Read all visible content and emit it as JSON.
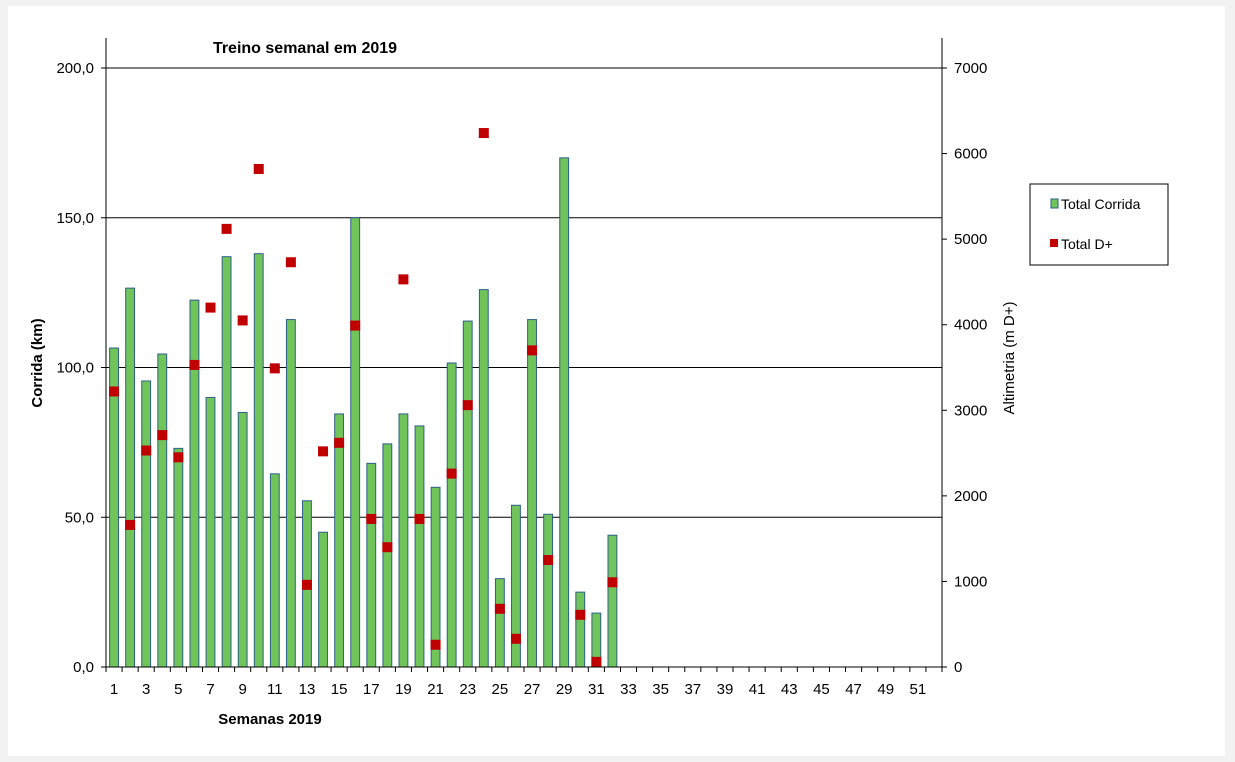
{
  "chart_data": {
    "type": "bar",
    "title": "Treino semanal em 2019",
    "xlabel": "Semanas 2019",
    "ylabel": "Corrida (km)",
    "y2label": "Altimetria (m D+)",
    "ylim": [
      0,
      200
    ],
    "y2lim": [
      0,
      7000
    ],
    "yticks": [
      "0,0",
      "50,0",
      "100,0",
      "150,0",
      "200,0"
    ],
    "y2ticks": [
      "0",
      "1000",
      "2000",
      "3000",
      "4000",
      "5000",
      "6000",
      "7000"
    ],
    "xticks": [
      "1",
      "3",
      "5",
      "7",
      "9",
      "11",
      "13",
      "15",
      "17",
      "19",
      "21",
      "23",
      "25",
      "27",
      "29",
      "31",
      "33",
      "35",
      "37",
      "39",
      "41",
      "43",
      "45",
      "47",
      "49",
      "51"
    ],
    "weeks": [
      1,
      2,
      3,
      4,
      5,
      6,
      7,
      8,
      9,
      10,
      11,
      12,
      13,
      14,
      15,
      16,
      17,
      18,
      19,
      20,
      21,
      22,
      23,
      24,
      25,
      26,
      27,
      28,
      29,
      30,
      31,
      32,
      33,
      34,
      35,
      36,
      37,
      38,
      39,
      40,
      41,
      42,
      43,
      44,
      45,
      46,
      47,
      48,
      49,
      50,
      51,
      52
    ],
    "grid": true,
    "legend_position": "right",
    "series": [
      {
        "name": "Total Corrida",
        "kind": "bar",
        "axis": "left",
        "color": "#70c45a",
        "edge_color": "#2e5f8a",
        "values": [
          106.5,
          126.5,
          95.5,
          104.5,
          73,
          122.5,
          90,
          137,
          85,
          138,
          64.5,
          116,
          55.5,
          45,
          84.5,
          150,
          68,
          74.5,
          84.5,
          80.5,
          60,
          101.5,
          115.5,
          126,
          29.5,
          54,
          116,
          51,
          170,
          25,
          18,
          44,
          null,
          null,
          null,
          null,
          null,
          null,
          null,
          null,
          null,
          null,
          null,
          null,
          null,
          null,
          null,
          null,
          null,
          null,
          null,
          null
        ]
      },
      {
        "name": "Total D+",
        "kind": "marker",
        "axis": "right",
        "color": "#c00000",
        "values": [
          3220,
          1660,
          2530,
          2710,
          2450,
          3530,
          4200,
          5120,
          4050,
          5820,
          3490,
          4730,
          960,
          2520,
          2620,
          3990,
          1730,
          1400,
          4530,
          1730,
          260,
          2260,
          3060,
          6240,
          680,
          330,
          3700,
          1250,
          null,
          610,
          60,
          990,
          null,
          null,
          null,
          null,
          null,
          null,
          null,
          null,
          null,
          null,
          null,
          null,
          null,
          null,
          null,
          null,
          null,
          null,
          null,
          null
        ]
      }
    ]
  }
}
